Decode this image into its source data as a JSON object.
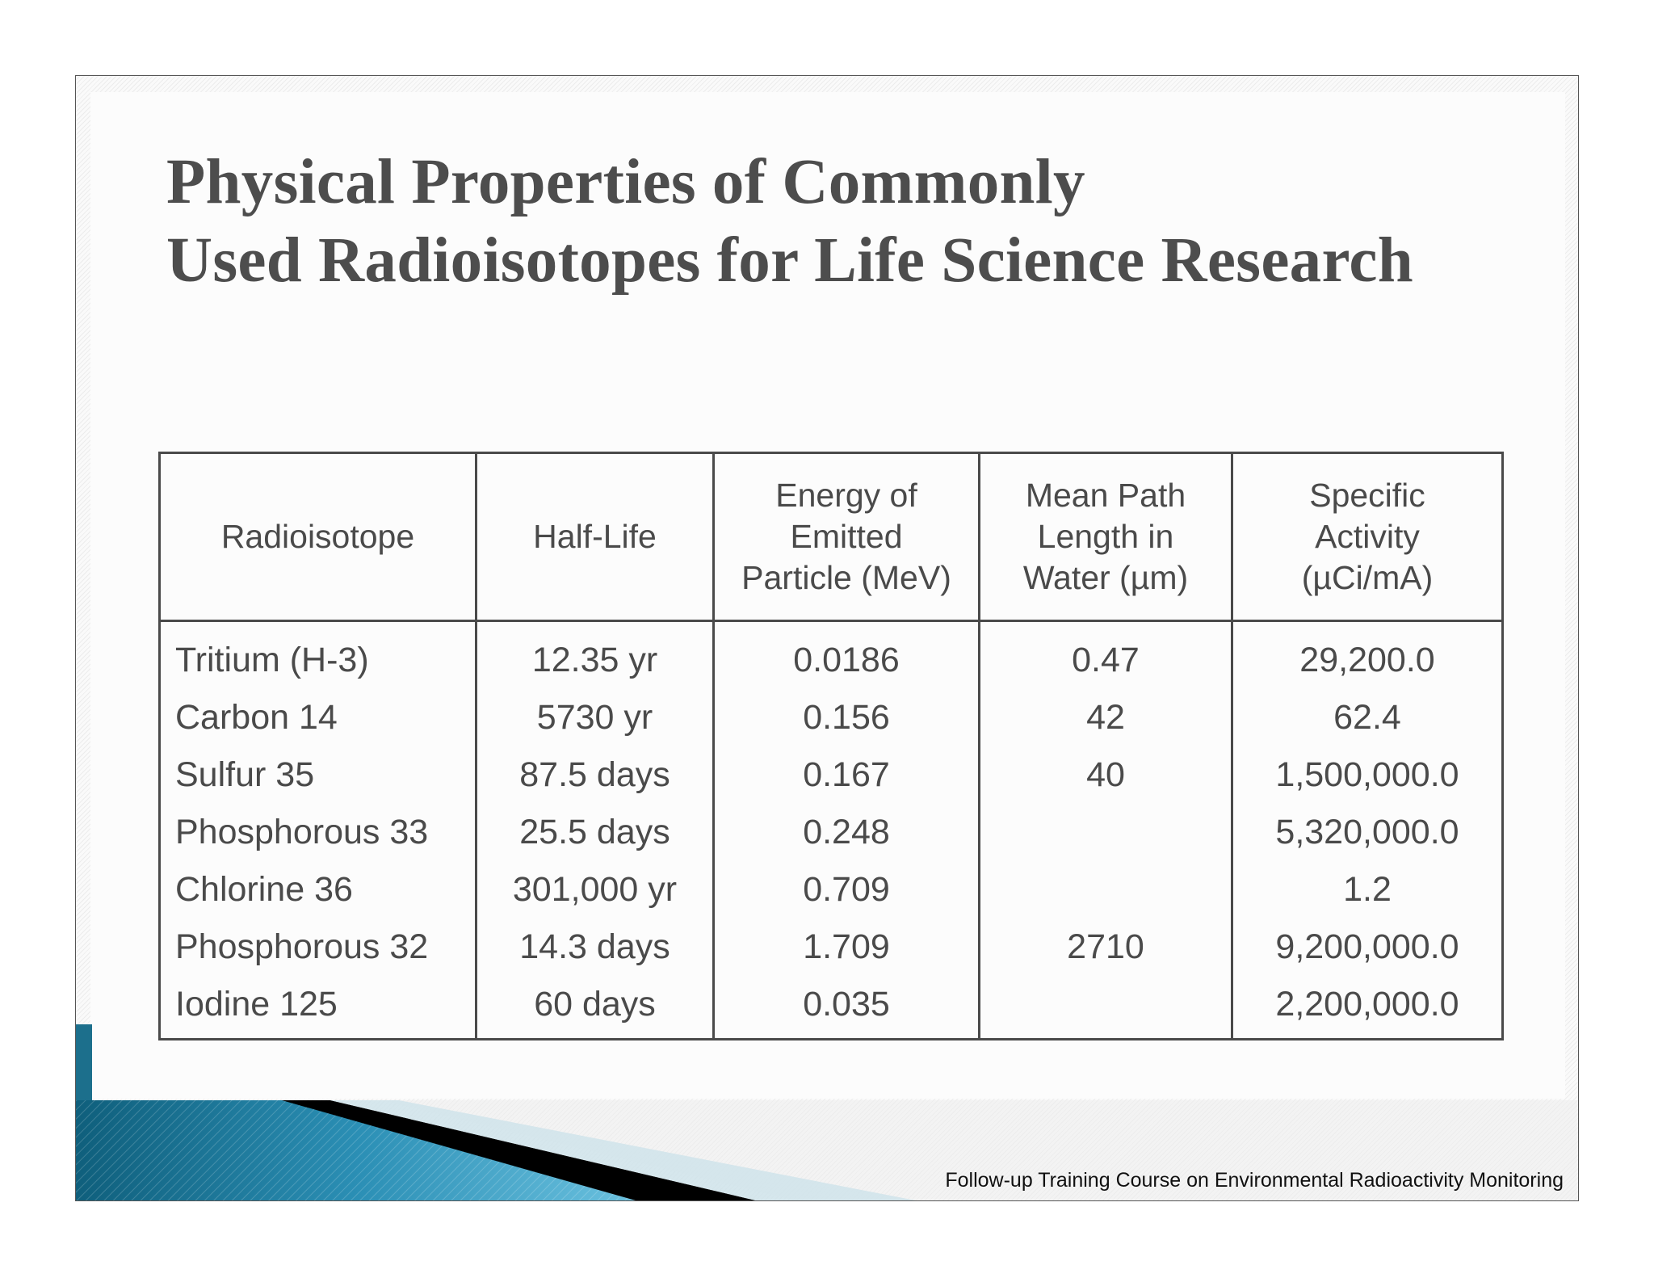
{
  "slide": {
    "title_line1": "Physical Properties of Commonly",
    "title_line2": "Used Radioisotopes for Life Science Research",
    "footer": "Follow-up Training Course on Environmental Radioactivity Monitoring",
    "accent_colors": [
      "#1c6f8c",
      "#3a9fc6",
      "#000000"
    ]
  },
  "table": {
    "headers": [
      "Radioisotope",
      "Half-Life",
      "Energy of Emitted Particle (MeV)",
      "Mean Path Length in Water (µm)",
      "Specific Activity (µCi/mA)"
    ],
    "rows": [
      [
        "Tritium (H-3)",
        "12.35 yr",
        "0.0186",
        "0.47",
        "29,200.0"
      ],
      [
        "Carbon 14",
        "5730 yr",
        "0.156",
        "42",
        "62.4"
      ],
      [
        "Sulfur 35",
        "87.5 days",
        "0.167",
        "40",
        "1,500,000.0"
      ],
      [
        "Phosphorous 33",
        "25.5 days",
        "0.248",
        "",
        "5,320,000.0"
      ],
      [
        "Chlorine 36",
        "301,000 yr",
        "0.709",
        "",
        "1.2"
      ],
      [
        "Phosphorous 32",
        "14.3 days",
        "1.709",
        "2710",
        "9,200,000.0"
      ],
      [
        "Iodine 125",
        "60 days",
        "0.035",
        "",
        "2,200,000.0"
      ]
    ]
  }
}
